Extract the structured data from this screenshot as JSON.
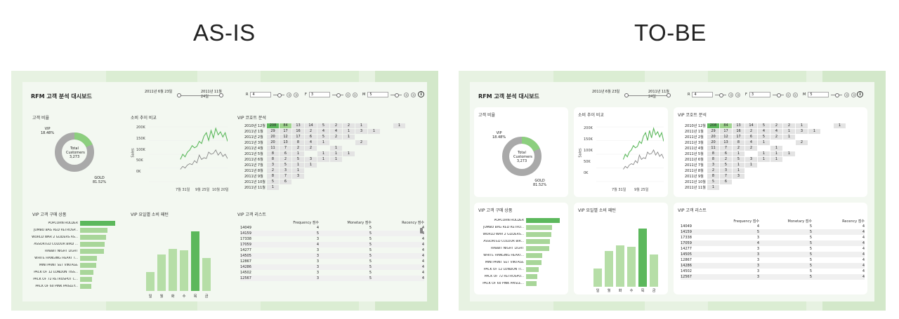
{
  "captions": {
    "left": "AS-IS",
    "right": "TO-BE"
  },
  "dashboard": {
    "title": "RFM 고객 분석 대시보드",
    "date_start": "2011년 6월 23일",
    "date_end": "2011년 11월 24일",
    "filters": [
      {
        "key": "R",
        "value": "4"
      },
      {
        "key": "F",
        "value": "3"
      },
      {
        "key": "M",
        "value": "5"
      }
    ],
    "info_label": "i",
    "arrow_prev": "<",
    "arrow_next": ">",
    "cards": {
      "ratio": "고객 비율",
      "trend": "소비 추이 비교",
      "cohort": "VIP 코호트 분석",
      "products": "VIP 고객 구매 상품",
      "weekday": "VIP 요일별 소비 패턴",
      "list": "VIP 고객 리스트"
    },
    "donut": {
      "vip_label": "VIP",
      "vip_pct": "18.48%",
      "gold_label": "GOLD",
      "gold_pct": "81.52%",
      "center_l1": "Total",
      "center_l2": "Customers",
      "center_l3": "3,273",
      "vip_fraction": 0.1848
    },
    "trend_axis": {
      "ylabel": "Sales",
      "yticks": [
        "200K",
        "150K",
        "100K",
        "50K",
        "0K"
      ],
      "xticks": [
        "7월 31일",
        "9월 25일",
        "10월 20일"
      ]
    },
    "trend_xticks_tobe": [
      "7월 31일",
      "9월 25일"
    ],
    "cohort": {
      "rows": [
        {
          "label": "2010년 12월",
          "cells": [
            "208",
            "84",
            "13",
            "14",
            "5",
            "2",
            "2",
            "1",
            "",
            "",
            "1"
          ]
        },
        {
          "label": "2011년 1월",
          "cells": [
            "29",
            "17",
            "16",
            "2",
            "4",
            "4",
            "1",
            "3",
            "1",
            "",
            ""
          ]
        },
        {
          "label": "2011년 2월",
          "cells": [
            "20",
            "12",
            "17",
            "6",
            "5",
            "2",
            "1",
            "",
            "",
            "",
            ""
          ]
        },
        {
          "label": "2011년 3월",
          "cells": [
            "20",
            "13",
            "8",
            "4",
            "1",
            "",
            "",
            "2",
            "",
            "",
            ""
          ]
        },
        {
          "label": "2011년 4월",
          "cells": [
            "11",
            "7",
            "2",
            "2",
            "",
            "1",
            "",
            "",
            "",
            "",
            ""
          ]
        },
        {
          "label": "2011년 5월",
          "cells": [
            "8",
            "6",
            "1",
            "",
            "1",
            "1",
            "1",
            "",
            "",
            "",
            ""
          ]
        },
        {
          "label": "2011년 6월",
          "cells": [
            "8",
            "2",
            "5",
            "3",
            "1",
            "1",
            "",
            "",
            "",
            "",
            ""
          ]
        },
        {
          "label": "2011년 7월",
          "cells": [
            "3",
            "5",
            "1",
            "1",
            "",
            "",
            "",
            "",
            "",
            "",
            ""
          ]
        },
        {
          "label": "2011년 8월",
          "cells": [
            "2",
            "3",
            "1",
            "",
            "",
            "",
            "",
            "",
            "",
            "",
            ""
          ]
        },
        {
          "label": "2011년 9월",
          "cells": [
            "8",
            "7",
            "3",
            "",
            "",
            "",
            "",
            "",
            "",
            "",
            ""
          ]
        },
        {
          "label": "2011년 10월",
          "cells": [
            "5",
            "6",
            "",
            "",
            "",
            "",
            "",
            "",
            "",
            "",
            ""
          ]
        },
        {
          "label": "2011년 11월",
          "cells": [
            "1",
            "",
            "",
            "",
            "",
            "",
            "",
            "",
            "",
            "",
            ""
          ]
        }
      ]
    },
    "products": [
      {
        "name": "POPCORN HOLDER",
        "value": 100
      },
      {
        "name": "JUMBO BAG RED RETROSP...",
        "value": 78
      },
      {
        "name": "WORLD WAR 2 GLIDERS AS...",
        "value": 74
      },
      {
        "name": "ASSORTED COLOUR BIRD ...",
        "value": 70
      },
      {
        "name": "RABBIT NIGHT LIGHT",
        "value": 68
      },
      {
        "name": "WHITE HANGING HEART T...",
        "value": 48
      },
      {
        "name": "MINI PAINT SET VINTAGE",
        "value": 45
      },
      {
        "name": "PACK OF 12 LONDON TISS...",
        "value": 38
      },
      {
        "name": "PACK OF 72 RETROSPOT C...",
        "value": 34
      },
      {
        "name": "PACK OF 60 PINK PAISLEY...",
        "value": 32
      }
    ],
    "products_tobe": [
      {
        "name": "POPCORN HOLDER",
        "value": 100
      },
      {
        "name": "JUMBO BAG RED RETRO...",
        "value": 78
      },
      {
        "name": "WORLD WAR 2 GLIDERS...",
        "value": 74
      },
      {
        "name": "ASSORTED COLOUR BIR...",
        "value": 70
      },
      {
        "name": "RABBIT NIGHT LIGHT",
        "value": 68
      },
      {
        "name": "WHITE HANGING HEART...",
        "value": 48
      },
      {
        "name": "MINI PAINT SET VINTAGE",
        "value": 45
      },
      {
        "name": "PACK OF 12 LONDON TI...",
        "value": 38
      },
      {
        "name": "PACK OF 72 RETROSPO...",
        "value": 34
      },
      {
        "name": "PACK OF 60 PINK PAISLE...",
        "value": 32
      }
    ],
    "weekday": {
      "days": [
        "일",
        "월",
        "화",
        "수",
        "목",
        "금"
      ],
      "values": [
        27,
        52,
        60,
        58,
        85,
        47
      ]
    },
    "list": {
      "headers": [
        "",
        "Frequency 점수",
        "Monetary 점수",
        "Recency 점수"
      ],
      "rows": [
        [
          "14049",
          "4",
          "5",
          "4"
        ],
        [
          "14159",
          "5",
          "5",
          "4"
        ],
        [
          "17338",
          "3",
          "5",
          "4"
        ],
        [
          "17059",
          "4",
          "5",
          "4"
        ],
        [
          "14277",
          "3",
          "5",
          "4"
        ],
        [
          "14505",
          "3",
          "5",
          "4"
        ],
        [
          "12867",
          "3",
          "5",
          "4"
        ],
        [
          "14286",
          "3",
          "5",
          "4"
        ],
        [
          "14502",
          "3",
          "5",
          "4"
        ],
        [
          "12567",
          "3",
          "5",
          "4"
        ]
      ]
    }
  },
  "colors": {
    "accent": "#5cb85c",
    "light": "#b6dea7",
    "gray": "#999999",
    "bg": "#e7f2e2"
  }
}
